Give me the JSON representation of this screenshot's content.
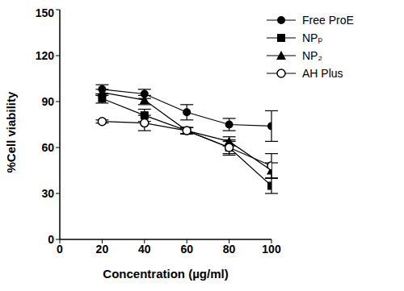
{
  "chart_data": {
    "type": "line",
    "x_label": "Concentration (µg/ml)",
    "y_label": "%Cell viability",
    "x": [
      20,
      40,
      60,
      80,
      100
    ],
    "xlim": [
      0,
      100
    ],
    "xticks": [
      0,
      20,
      40,
      60,
      80,
      100
    ],
    "ylim": [
      0,
      150
    ],
    "yticks": [
      0,
      30,
      60,
      90,
      120,
      150
    ],
    "grid": false,
    "legend": "upper right",
    "series": [
      {
        "name": "Free ProE",
        "color": "#000000",
        "marker": "circle",
        "line_style": "solid",
        "values": [
          98,
          95,
          83,
          75,
          74
        ],
        "errors": [
          3,
          3,
          5,
          4,
          10
        ]
      },
      {
        "name": "NPₚ",
        "color": "#000000",
        "marker": "square",
        "line_style": "solid",
        "values": [
          92,
          81,
          71,
          60,
          35
        ],
        "errors": [
          3,
          4,
          2,
          4,
          5
        ]
      },
      {
        "name": "NP₂",
        "color": "#000000",
        "marker": "triangle",
        "line_style": "solid",
        "values": [
          96,
          91,
          71,
          64,
          45
        ],
        "errors": [
          2,
          3,
          2,
          3,
          5
        ]
      },
      {
        "name": "AH Plus",
        "color": "#000000",
        "marker": "circle-open",
        "line_style": "solid",
        "values": [
          77,
          76,
          71,
          60,
          48
        ],
        "errors": [
          1,
          5,
          2,
          5,
          8
        ]
      }
    ]
  }
}
